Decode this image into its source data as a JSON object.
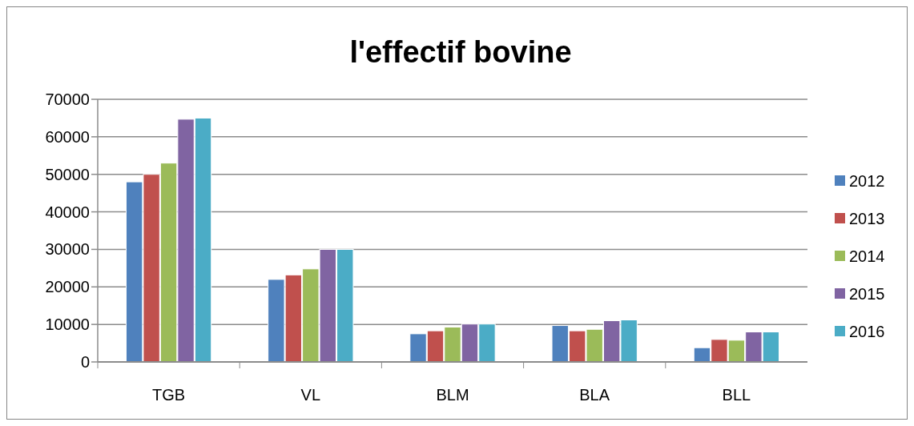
{
  "chart_data": {
    "type": "bar",
    "title": "l'effectif bovine",
    "categories": [
      "TGB",
      "VL",
      "BLM",
      "BLA",
      "BLL"
    ],
    "series": [
      {
        "name": "2012",
        "color": "#4f81bd",
        "values": [
          48000,
          22000,
          7500,
          9700,
          3800
        ]
      },
      {
        "name": "2013",
        "color": "#c0504d",
        "values": [
          50000,
          23200,
          8300,
          8300,
          6000
        ]
      },
      {
        "name": "2014",
        "color": "#9bbb59",
        "values": [
          53000,
          24800,
          9300,
          8700,
          5800
        ]
      },
      {
        "name": "2015",
        "color": "#8064a2",
        "values": [
          64700,
          30000,
          10100,
          11000,
          8000
        ]
      },
      {
        "name": "2016",
        "color": "#4bacc6",
        "values": [
          65000,
          30000,
          10100,
          11200,
          8000
        ]
      }
    ],
    "ylim": [
      0,
      70000
    ],
    "yticks": [
      0,
      10000,
      20000,
      30000,
      40000,
      50000,
      60000,
      70000
    ],
    "grid": "y",
    "legend": "right"
  }
}
